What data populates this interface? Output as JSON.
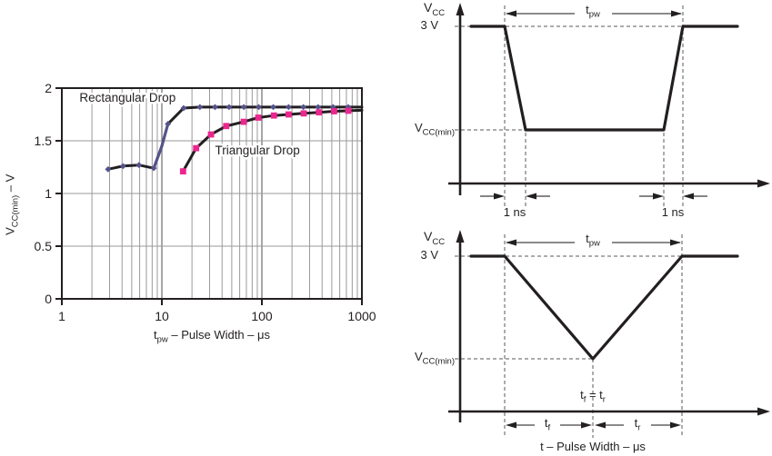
{
  "chart_data": {
    "type": "line",
    "title": "",
    "x_scale": "log",
    "xlim": [
      1,
      1000
    ],
    "ylim": [
      0,
      2
    ],
    "x_ticks": [
      1,
      10,
      100,
      1000
    ],
    "x_tick_labels": [
      "1",
      "10",
      "100",
      "1000"
    ],
    "y_ticks": [
      0,
      0.5,
      1,
      1.5,
      2
    ],
    "y_tick_labels": [
      "0",
      "0.5",
      "1",
      "1.5",
      "2"
    ],
    "grid": true,
    "xlabel": {
      "main": "t",
      "sub": "pw",
      "rest": " – Pulse Width –  μs"
    },
    "ylabel": {
      "main": "V",
      "sub": "CC(min)",
      "rest": " – V"
    },
    "series": [
      {
        "name": "Rectangular Drop",
        "marker": "diamond",
        "marker_color": "#54548c",
        "line_color": "#231f20",
        "line_points": [
          [
            2.9,
            1.23
          ],
          [
            4.1,
            1.26
          ],
          [
            5.9,
            1.27
          ],
          [
            8.3,
            1.24
          ],
          [
            10,
            1.45
          ],
          [
            11.5,
            1.66
          ],
          [
            16.5,
            1.81
          ],
          [
            24,
            1.82
          ],
          [
            1000,
            1.82
          ]
        ],
        "marker_points": [
          [
            2.9,
            1.23
          ],
          [
            4.1,
            1.26
          ],
          [
            5.9,
            1.27
          ],
          [
            8.3,
            1.24
          ],
          [
            11.5,
            1.66
          ],
          [
            16.5,
            1.81
          ],
          [
            24,
            1.82
          ],
          [
            34,
            1.82
          ],
          [
            47,
            1.82
          ],
          [
            66,
            1.82
          ],
          [
            93,
            1.82
          ],
          [
            130,
            1.82
          ],
          [
            185,
            1.82
          ],
          [
            260,
            1.82
          ],
          [
            365,
            1.82
          ],
          [
            515,
            1.82
          ],
          [
            731,
            1.82
          ]
        ],
        "colored_segment": {
          "indices": [
            3,
            4,
            5
          ],
          "color": "#54548c"
        },
        "label_pos": [
          1.5,
          1.87
        ]
      },
      {
        "name": "Triangular Drop",
        "marker": "square",
        "marker_color": "#ec268f",
        "line_color": "#231f20",
        "line_points": [
          [
            16.3,
            1.21
          ],
          [
            22,
            1.43
          ],
          [
            31,
            1.56
          ],
          [
            44,
            1.64
          ],
          [
            66,
            1.68
          ],
          [
            92,
            1.72
          ],
          [
            132,
            1.74
          ],
          [
            185,
            1.75
          ],
          [
            262,
            1.76
          ],
          [
            372,
            1.77
          ],
          [
            527,
            1.78
          ],
          [
            731,
            1.785
          ],
          [
            1000,
            1.79
          ]
        ],
        "marker_points": [
          [
            16.3,
            1.21
          ],
          [
            22,
            1.43
          ],
          [
            31,
            1.56
          ],
          [
            44,
            1.64
          ],
          [
            66,
            1.68
          ],
          [
            92,
            1.72
          ],
          [
            132,
            1.74
          ],
          [
            185,
            1.75
          ],
          [
            262,
            1.76
          ],
          [
            372,
            1.77
          ],
          [
            527,
            1.78
          ],
          [
            731,
            1.785
          ]
        ],
        "label_pos": [
          34,
          1.37
        ]
      }
    ]
  },
  "waveform_rect": {
    "y_axis_label": {
      "main": "V",
      "sub": "CC"
    },
    "level_3v": "3 V",
    "vcc_min": {
      "main": "V",
      "sub": "CC(min)"
    },
    "tpw": {
      "main": "t",
      "sub": "pw"
    },
    "fall_time_note": "1 ns",
    "rise_time_note": "1 ns"
  },
  "waveform_tri": {
    "y_axis_label": {
      "main": "V",
      "sub": "CC"
    },
    "level_3v": "3 V",
    "vcc_min": {
      "main": "V",
      "sub": "CC(min)"
    },
    "tpw": {
      "main": "t",
      "sub": "pw"
    },
    "tf_eq_tr": {
      "main1": "t",
      "sub1": "f",
      "mid": " = t",
      "sub2": "r"
    },
    "tf": {
      "main": "t",
      "sub": "f"
    },
    "tr": {
      "main": "t",
      "sub": "r"
    },
    "x_axis_label": "t – Pulse Width –  μs"
  },
  "colors": {
    "curve": "#231f20",
    "rect_marker": "#54548c",
    "tri_marker": "#ec268f",
    "grid_minor": "#9a9a9a",
    "grid_major": "#787878",
    "axis": "#231f20",
    "dashed": "#5a5a5a",
    "measure": "#444444"
  }
}
